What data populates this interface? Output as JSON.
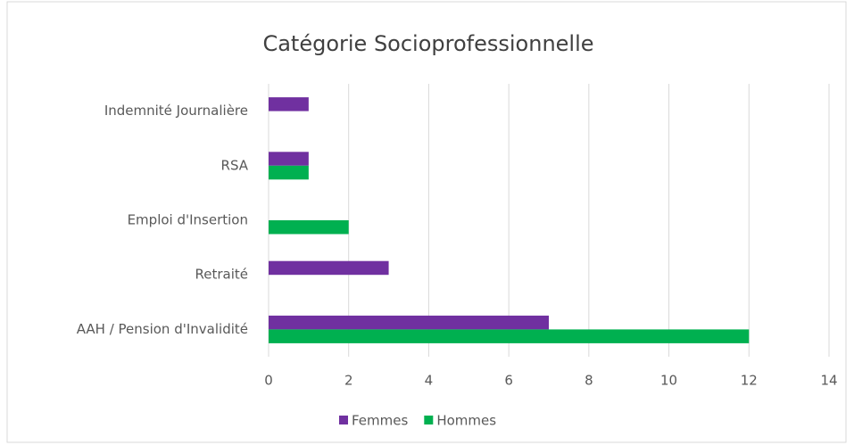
{
  "chart_data": {
    "type": "hbar",
    "title": "Catégorie Socioprofessionnelle",
    "categories": [
      "Indemnité Journalière",
      "RSA",
      "Emploi d'Insertion",
      "Retraité",
      "AAH / Pension d'Invalidité"
    ],
    "series": [
      {
        "name": "Femmes",
        "color": "#7030a0",
        "values": [
          1,
          1,
          0,
          3,
          7
        ]
      },
      {
        "name": "Hommes",
        "color": "#00b050",
        "values": [
          0,
          1,
          2,
          0,
          12
        ]
      }
    ],
    "xlim": [
      0,
      14
    ],
    "xticks": [
      0,
      2,
      4,
      6,
      8,
      10,
      12,
      14
    ],
    "grid": true,
    "legend": "bottom"
  }
}
